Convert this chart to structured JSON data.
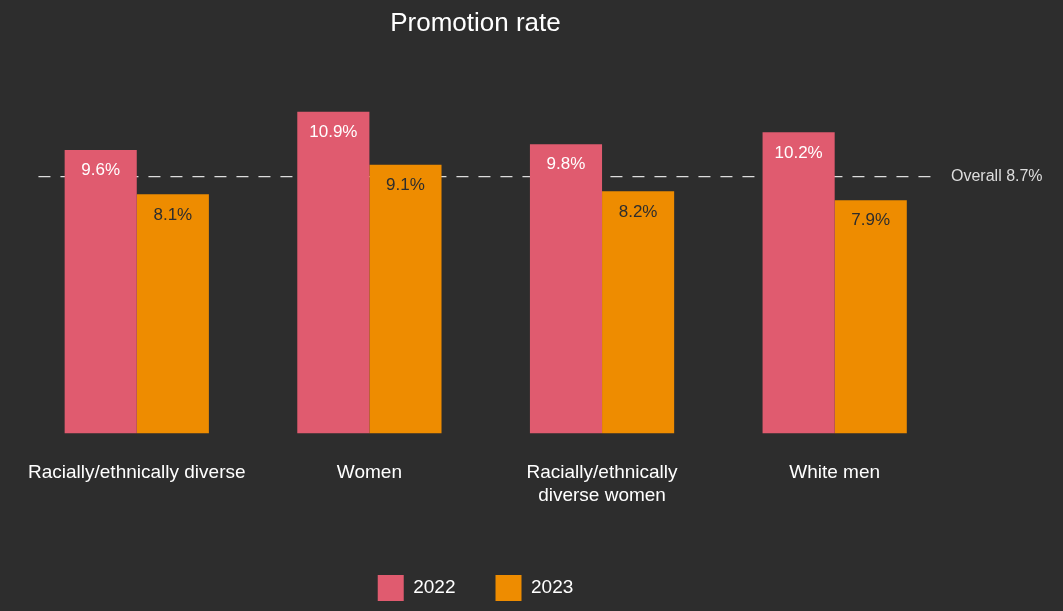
{
  "chart_data": {
    "type": "bar",
    "title": "Promotion rate",
    "categories": [
      "Racially/ethnically diverse",
      "Women",
      "Racially/ethnically diverse women",
      "White men"
    ],
    "series": [
      {
        "name": "2022",
        "color": "#e05b6f",
        "values": [
          9.6,
          10.9,
          9.8,
          10.2
        ],
        "value_labels": [
          "9.6%",
          "10.9%",
          "9.8%",
          "10.2%"
        ]
      },
      {
        "name": "2023",
        "color": "#ee8c00",
        "values": [
          8.1,
          9.1,
          8.2,
          7.9
        ],
        "value_labels": [
          "8.1%",
          "9.1%",
          "8.2%",
          "7.9%"
        ]
      }
    ],
    "ref_lines": [
      {
        "axis": "y",
        "value": 8.7,
        "label": "Overall 8.7%",
        "color": "#dddddd",
        "line_style": "dashed"
      }
    ],
    "legend": "bottom"
  }
}
